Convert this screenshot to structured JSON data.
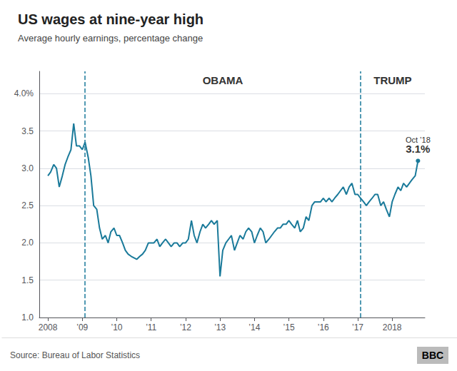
{
  "chart_data": {
    "type": "line",
    "title": "US wages at nine-year high",
    "subtitle": "Average hourly earnings, percentage change",
    "source": "Source: Bureau of Labor Statistics",
    "logo": "BBC",
    "period_labels": [
      "OBAMA",
      "TRUMP"
    ],
    "vlines": [
      2009.08,
      2017.08
    ],
    "annotations": [
      "Oct ’18",
      "3.1%"
    ],
    "color": "#1a7a9a",
    "grid": true,
    "xlim": [
      2007.75,
      2018.95
    ],
    "xticks": [
      2008,
      {
        "value": 2009,
        "label": "’09"
      },
      {
        "value": 2010,
        "label": "’10"
      },
      {
        "value": 2011,
        "label": "’11"
      },
      {
        "value": 2012,
        "label": "’12"
      },
      {
        "value": 2013,
        "label": "’13"
      },
      {
        "value": 2014,
        "label": "’14"
      },
      {
        "value": 2015,
        "label": "’15"
      },
      {
        "value": 2016,
        "label": "’16"
      },
      {
        "value": 2017,
        "label": "’17"
      },
      2018
    ],
    "ylim": [
      1.0,
      4.3
    ],
    "yticks": [
      {
        "value": 1.0,
        "label": "1.0"
      },
      1.5,
      {
        "value": 2.0,
        "label": "2.0"
      },
      2.5,
      {
        "value": 3.0,
        "label": "3.0"
      },
      3.5,
      {
        "value": 4.0,
        "label": "4.0%"
      }
    ],
    "x": [
      2008.0,
      2008.08,
      2008.17,
      2008.25,
      2008.33,
      2008.42,
      2008.5,
      2008.58,
      2008.67,
      2008.75,
      2008.83,
      2008.92,
      2009.0,
      2009.08,
      2009.17,
      2009.25,
      2009.33,
      2009.42,
      2009.5,
      2009.58,
      2009.67,
      2009.75,
      2009.83,
      2009.92,
      2010.0,
      2010.08,
      2010.17,
      2010.25,
      2010.33,
      2010.42,
      2010.5,
      2010.58,
      2010.67,
      2010.75,
      2010.83,
      2010.92,
      2011.0,
      2011.08,
      2011.17,
      2011.25,
      2011.33,
      2011.42,
      2011.5,
      2011.58,
      2011.67,
      2011.75,
      2011.83,
      2011.92,
      2012.0,
      2012.08,
      2012.17,
      2012.25,
      2012.33,
      2012.42,
      2012.5,
      2012.58,
      2012.67,
      2012.75,
      2012.83,
      2012.92,
      2013.0,
      2013.08,
      2013.17,
      2013.25,
      2013.33,
      2013.42,
      2013.5,
      2013.58,
      2013.67,
      2013.75,
      2013.83,
      2013.92,
      2014.0,
      2014.08,
      2014.17,
      2014.25,
      2014.33,
      2014.42,
      2014.5,
      2014.58,
      2014.67,
      2014.75,
      2014.83,
      2014.92,
      2015.0,
      2015.08,
      2015.17,
      2015.25,
      2015.33,
      2015.42,
      2015.5,
      2015.58,
      2015.67,
      2015.75,
      2015.83,
      2015.92,
      2016.0,
      2016.08,
      2016.17,
      2016.25,
      2016.33,
      2016.42,
      2016.5,
      2016.58,
      2016.67,
      2016.75,
      2016.83,
      2016.92,
      2017.0,
      2017.08,
      2017.17,
      2017.25,
      2017.33,
      2017.42,
      2017.5,
      2017.58,
      2017.67,
      2017.75,
      2017.83,
      2017.92,
      2018.0,
      2018.08,
      2018.17,
      2018.25,
      2018.33,
      2018.42,
      2018.5,
      2018.58,
      2018.67,
      2018.75
    ],
    "values": [
      2.9,
      2.95,
      3.05,
      3.0,
      2.75,
      2.9,
      3.05,
      3.15,
      3.25,
      3.6,
      3.3,
      3.3,
      3.25,
      3.35,
      3.15,
      2.9,
      2.5,
      2.45,
      2.2,
      2.05,
      2.1,
      2.0,
      2.15,
      2.2,
      2.1,
      2.1,
      2.0,
      1.9,
      1.85,
      1.82,
      1.8,
      1.78,
      1.82,
      1.85,
      1.9,
      2.0,
      2.0,
      2.0,
      2.05,
      1.95,
      2.0,
      2.05,
      2.0,
      1.95,
      2.0,
      2.0,
      1.95,
      2.0,
      2.0,
      2.05,
      2.3,
      2.1,
      2.0,
      2.15,
      2.25,
      2.2,
      2.25,
      2.3,
      2.25,
      2.3,
      1.55,
      1.9,
      2.0,
      2.05,
      2.1,
      1.9,
      2.0,
      2.1,
      2.05,
      2.15,
      2.2,
      2.15,
      2.0,
      2.1,
      2.2,
      2.15,
      2.0,
      2.05,
      2.1,
      2.15,
      2.2,
      2.2,
      2.25,
      2.25,
      2.3,
      2.25,
      2.2,
      2.3,
      2.15,
      2.2,
      2.35,
      2.3,
      2.5,
      2.55,
      2.55,
      2.55,
      2.6,
      2.55,
      2.6,
      2.55,
      2.6,
      2.65,
      2.7,
      2.75,
      2.65,
      2.75,
      2.8,
      2.65,
      2.65,
      2.6,
      2.55,
      2.5,
      2.55,
      2.6,
      2.65,
      2.65,
      2.5,
      2.55,
      2.45,
      2.35,
      2.55,
      2.65,
      2.75,
      2.7,
      2.8,
      2.75,
      2.8,
      2.85,
      2.9,
      3.1
    ]
  }
}
